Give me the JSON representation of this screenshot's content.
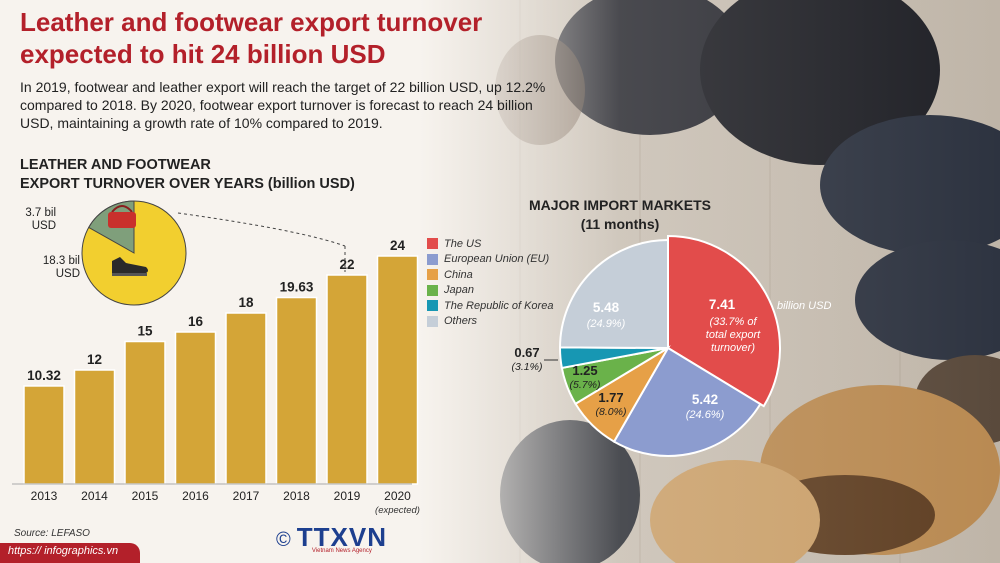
{
  "header": {
    "title": "Leather and footwear export turnover expected to hit 24 billion USD",
    "intro": "In 2019, footwear and leather export will reach the target of 22 billion USD, up 12.2% compared to 2018. By 2020, footwear export turnover is forecast to reach 24 billion USD, maintaining a growth rate of 10% compared to 2019."
  },
  "colors": {
    "title_red": "#b3202a",
    "bar_gold": "#d4a537",
    "pie_us": "#e24c4b",
    "pie_eu": "#8c9ccf",
    "pie_china": "#e6a047",
    "pie_japan": "#6ab24a",
    "pie_korea": "#1797b3",
    "pie_others": "#c5ced8"
  },
  "inset": {
    "leather_label": "3.7 bil\nUSD",
    "footwear_label": "18.3 bil\nUSD",
    "leather_value": 3.7,
    "footwear_value": 18.3,
    "leather_icon": "handbag-icon",
    "footwear_icon": "shoe-icon"
  },
  "chart_data": [
    {
      "type": "bar",
      "title": "LEATHER AND FOOTWEAR\nEXPORT TURNOVER OVER YEARS (billion USD)",
      "categories": [
        "2013",
        "2014",
        "2015",
        "2016",
        "2017",
        "2018",
        "2019",
        "2020\n(expected)"
      ],
      "values": [
        10.32,
        12,
        15,
        16,
        18,
        19.63,
        22,
        24
      ],
      "value_labels": [
        "10.32",
        "12",
        "15",
        "16",
        "18",
        "19.63",
        "22",
        "24"
      ],
      "ylim": [
        0,
        24
      ],
      "grid": false
    },
    {
      "type": "pie",
      "title": "MAJOR IMPORT MARKETS\n(11 months)",
      "legend": [
        "The US",
        "European Union (EU)",
        "China",
        "Japan",
        "The Republic of Korea",
        "Others"
      ],
      "legend_position": "left",
      "values": [
        7.41,
        5.42,
        1.77,
        1.25,
        0.67,
        5.48
      ],
      "percents": [
        "(33.7% of\ntotal export\nturnover)",
        "(24.6%)",
        "(8.0%)",
        "(5.7%)",
        "(3.1%)",
        "(24.9%)"
      ],
      "value_labels": [
        "7.41",
        "5.42",
        "1.77",
        "1.25",
        "0.67",
        "5.48"
      ],
      "unit_label": "billion USD"
    }
  ],
  "footer": {
    "source": "Source: LEFASO",
    "url": "https:// infographics.vn",
    "logo_text": "TTXVN",
    "logo_sub": "Vietnam News Agency",
    "logo_icon": "copyright-icon"
  }
}
